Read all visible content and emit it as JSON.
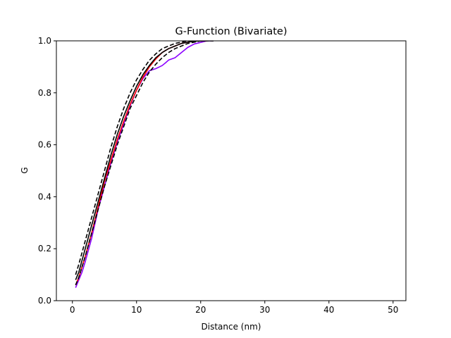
{
  "chart_data": {
    "type": "line",
    "title": "G-Function (Bivariate)",
    "xlabel": "Distance (nm)",
    "ylabel": "G",
    "xlim": [
      -2.5,
      52.0
    ],
    "ylim": [
      0.0,
      1.0
    ],
    "xticks": [
      0,
      10,
      20,
      30,
      40,
      50
    ],
    "yticks": [
      0.0,
      0.2,
      0.4,
      0.6,
      0.8,
      1.0
    ],
    "xtick_labels": [
      "0",
      "10",
      "20",
      "30",
      "40",
      "50"
    ],
    "ytick_labels": [
      "0.0",
      "0.2",
      "0.4",
      "0.6",
      "0.8",
      "1.0"
    ],
    "grid": false,
    "legend": "none",
    "series": [
      {
        "color": "#8b00ff",
        "style": "solid",
        "x": [
          0.5,
          1,
          1.5,
          2,
          3,
          4,
          5,
          6,
          7,
          8,
          9,
          10,
          11,
          12,
          13,
          14,
          14.5,
          15,
          16,
          17,
          18,
          19,
          20,
          21,
          22
        ],
        "y": [
          0.05,
          0.08,
          0.11,
          0.15,
          0.24,
          0.35,
          0.44,
          0.53,
          0.61,
          0.68,
          0.75,
          0.81,
          0.855,
          0.885,
          0.893,
          0.905,
          0.915,
          0.926,
          0.935,
          0.955,
          0.975,
          0.988,
          0.994,
          1.0,
          1.0
        ]
      },
      {
        "color": "#ff0000",
        "style": "solid",
        "x": [
          0.5,
          1,
          2,
          3,
          4,
          5,
          6,
          7,
          8,
          9,
          10,
          11,
          12,
          13,
          14,
          15,
          16,
          17,
          18,
          19,
          20,
          21
        ],
        "y": [
          0.06,
          0.09,
          0.17,
          0.26,
          0.36,
          0.46,
          0.54,
          0.62,
          0.69,
          0.755,
          0.81,
          0.86,
          0.9,
          0.93,
          0.955,
          0.97,
          0.98,
          0.99,
          0.995,
          1.0,
          1.0,
          1.0
        ]
      },
      {
        "color": "#000000",
        "style": "solid",
        "x": [
          0.5,
          1,
          2,
          3,
          4,
          5,
          6,
          7,
          8,
          9,
          10,
          11,
          12,
          13,
          14,
          15,
          16,
          17,
          18,
          19,
          20,
          21,
          22
        ],
        "y": [
          0.08,
          0.11,
          0.2,
          0.29,
          0.38,
          0.47,
          0.56,
          0.64,
          0.71,
          0.77,
          0.825,
          0.87,
          0.905,
          0.935,
          0.955,
          0.97,
          0.98,
          0.99,
          0.995,
          0.998,
          1.0,
          1.0,
          1.0
        ]
      },
      {
        "color": "#000000",
        "style": "dashed",
        "x": [
          0.5,
          1,
          2,
          3,
          4,
          5,
          6,
          7,
          8,
          9,
          10,
          11,
          12,
          13,
          14,
          15,
          16,
          17,
          18,
          19,
          20,
          21
        ],
        "y": [
          0.1,
          0.14,
          0.23,
          0.32,
          0.41,
          0.5,
          0.59,
          0.67,
          0.74,
          0.8,
          0.85,
          0.89,
          0.925,
          0.95,
          0.97,
          0.98,
          0.99,
          0.995,
          1.0,
          1.0,
          1.0,
          1.0
        ]
      },
      {
        "color": "#000000",
        "style": "dashed",
        "x": [
          0.5,
          1,
          2,
          3,
          4,
          5,
          6,
          7,
          8,
          9,
          10,
          11,
          12,
          13,
          14,
          15,
          16,
          17,
          18,
          19,
          20,
          21,
          22
        ],
        "y": [
          0.06,
          0.09,
          0.17,
          0.26,
          0.35,
          0.44,
          0.52,
          0.6,
          0.67,
          0.74,
          0.79,
          0.84,
          0.88,
          0.91,
          0.935,
          0.955,
          0.97,
          0.98,
          0.99,
          0.995,
          1.0,
          1.0,
          1.0
        ]
      }
    ]
  }
}
